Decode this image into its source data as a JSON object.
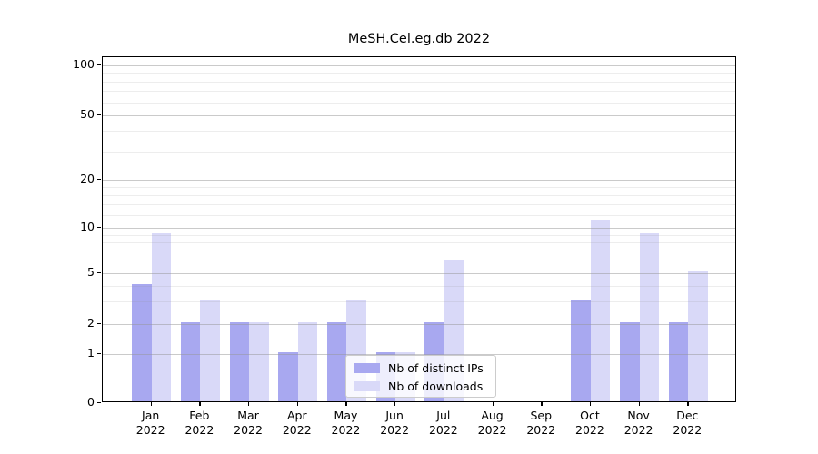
{
  "chart_data": {
    "type": "bar",
    "title": "MeSH.Cel.eg.db 2022",
    "categories": [
      "Jan",
      "Feb",
      "Mar",
      "Apr",
      "May",
      "Jun",
      "Jul",
      "Aug",
      "Sep",
      "Oct",
      "Nov",
      "Dec"
    ],
    "category_year": "2022",
    "series": [
      {
        "name": "Nb of distinct IPs",
        "color": "#a8a8f0",
        "values": [
          4,
          2,
          2,
          1,
          2,
          1,
          2,
          0,
          0,
          3,
          2,
          2
        ]
      },
      {
        "name": "Nb of downloads",
        "color": "#d9d9f8",
        "values": [
          9,
          3,
          2,
          2,
          3,
          1,
          6,
          0,
          0,
          11,
          9,
          5
        ]
      }
    ],
    "y_axis": {
      "scale": "log-like with 0 pinned at baseline",
      "major_ticks": [
        100,
        50,
        20,
        10,
        5,
        2,
        1,
        0
      ],
      "minor_ticks": [
        3,
        4,
        6,
        7,
        8,
        9,
        12,
        14,
        16,
        18,
        30,
        40,
        60,
        70,
        80,
        90
      ],
      "top_value": 115
    },
    "grid": "horizontal major and minor lines, drawn over bars",
    "legend": {
      "position": "bottom-center",
      "entries": [
        "Nb of distinct IPs",
        "Nb of downloads"
      ]
    },
    "colors": {
      "background": "#ffffff",
      "spines": "#000000",
      "grid_major": "#cdcdcd",
      "grid_minor": "#ededed",
      "text": "#000000"
    }
  }
}
